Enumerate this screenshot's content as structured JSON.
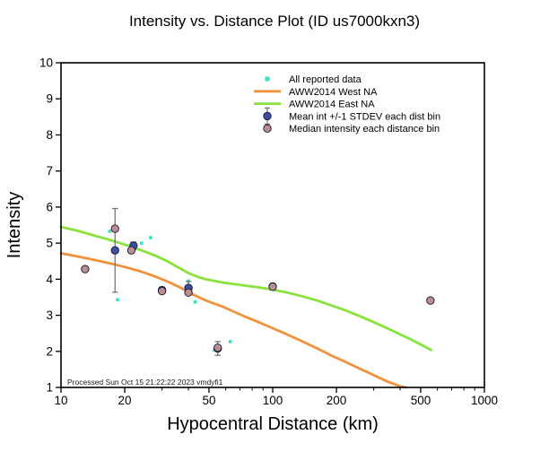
{
  "footnote": "Processed Sun Oct 15 21:22:22 2023 vmdyfi1",
  "colors": {
    "frame": "#000000",
    "all_data": "#3fe0c0",
    "west_line": "#f0913c",
    "east_line": "#8ae23c",
    "mean_fill": "#3d4f9f",
    "median_fill": "#bc8f8f",
    "marker_edge": "#14143c",
    "error_bar": "#6e6e6e"
  },
  "chart_data": {
    "type": "scatter",
    "title": "Intensity vs. Distance Plot (ID us7000kxn3)",
    "xlabel": "Hypocentral Distance (km)",
    "ylabel": "Intensity",
    "x_scale": "log",
    "y_scale": "linear",
    "xlim": [
      10,
      1000
    ],
    "ylim": [
      1,
      10
    ],
    "x_ticks": [
      10,
      20,
      50,
      100,
      200,
      500,
      1000
    ],
    "x_minor_ticks": [
      30,
      40,
      60,
      70,
      80,
      90,
      300,
      400,
      600,
      700,
      800,
      900
    ],
    "y_ticks": [
      1,
      2,
      3,
      4,
      5,
      6,
      7,
      8,
      9,
      10
    ],
    "grid": false,
    "legend_position": "top-center",
    "series": [
      {
        "id": "all-data",
        "name": "All reported data",
        "type": "scatter",
        "marker": "square",
        "color": "#3fe0c0",
        "points": [
          [
            13,
            4.28
          ],
          [
            17,
            5.33
          ],
          [
            18.5,
            3.43
          ],
          [
            24,
            5.0
          ],
          [
            26.5,
            5.15
          ],
          [
            30.5,
            3.66
          ],
          [
            40,
            3.95
          ],
          [
            43,
            3.37
          ],
          [
            53,
            2.03
          ],
          [
            63,
            2.27
          ],
          [
            100,
            3.86
          ],
          [
            556,
            3.41
          ]
        ]
      },
      {
        "id": "west-na",
        "name": "AWW2014 West NA",
        "type": "line",
        "color": "#f0913c",
        "points": [
          [
            10,
            4.72
          ],
          [
            12,
            4.63
          ],
          [
            14,
            4.55
          ],
          [
            17,
            4.44
          ],
          [
            20,
            4.34
          ],
          [
            24,
            4.21
          ],
          [
            28,
            4.07
          ],
          [
            32,
            3.93
          ],
          [
            36,
            3.79
          ],
          [
            40,
            3.64
          ],
          [
            44,
            3.52
          ],
          [
            48,
            3.42
          ],
          [
            52,
            3.34
          ],
          [
            58,
            3.24
          ],
          [
            65,
            3.11
          ],
          [
            75,
            2.95
          ],
          [
            85,
            2.82
          ],
          [
            100,
            2.64
          ],
          [
            115,
            2.49
          ],
          [
            135,
            2.3
          ],
          [
            160,
            2.1
          ],
          [
            190,
            1.88
          ],
          [
            220,
            1.71
          ],
          [
            260,
            1.51
          ],
          [
            300,
            1.34
          ],
          [
            350,
            1.16
          ],
          [
            400,
            1.03
          ],
          [
            425,
            1.0
          ]
        ]
      },
      {
        "id": "east-na",
        "name": "AWW2014 East NA",
        "type": "line",
        "color": "#8ae23c",
        "points": [
          [
            10,
            5.45
          ],
          [
            12,
            5.34
          ],
          [
            14,
            5.23
          ],
          [
            17,
            5.09
          ],
          [
            20,
            4.96
          ],
          [
            24,
            4.8
          ],
          [
            28,
            4.65
          ],
          [
            32,
            4.49
          ],
          [
            36,
            4.32
          ],
          [
            40,
            4.17
          ],
          [
            44,
            4.07
          ],
          [
            48,
            4.0
          ],
          [
            52,
            3.96
          ],
          [
            58,
            3.91
          ],
          [
            65,
            3.87
          ],
          [
            75,
            3.82
          ],
          [
            85,
            3.78
          ],
          [
            100,
            3.71
          ],
          [
            115,
            3.64
          ],
          [
            135,
            3.54
          ],
          [
            160,
            3.42
          ],
          [
            190,
            3.27
          ],
          [
            220,
            3.14
          ],
          [
            260,
            2.97
          ],
          [
            300,
            2.81
          ],
          [
            350,
            2.63
          ],
          [
            400,
            2.47
          ],
          [
            450,
            2.33
          ],
          [
            500,
            2.19
          ],
          [
            560,
            2.04
          ]
        ]
      },
      {
        "id": "mean",
        "name": "Mean int +/-1 STDEV each dist bin",
        "type": "scatter",
        "marker": "circle",
        "color": "#3d4f9f",
        "edge": "#14143c",
        "points": [
          [
            18,
            4.8,
            1.16
          ],
          [
            22,
            4.93,
            0.1
          ],
          [
            30,
            3.7,
            0.08
          ],
          [
            40,
            3.76,
            0.18
          ],
          [
            55,
            2.08,
            0.19
          ],
          [
            100,
            3.8,
            0.06
          ]
        ]
      },
      {
        "id": "median",
        "name": "Median intensity each distance bin",
        "type": "scatter",
        "marker": "circle",
        "color": "#bc8f8f",
        "edge": "#14143c",
        "points": [
          [
            13,
            4.28
          ],
          [
            18,
            5.4
          ],
          [
            21.5,
            4.8
          ],
          [
            30,
            3.67
          ],
          [
            40,
            3.63
          ],
          [
            55,
            2.1
          ],
          [
            100,
            3.79
          ],
          [
            556,
            3.41
          ]
        ]
      }
    ]
  }
}
